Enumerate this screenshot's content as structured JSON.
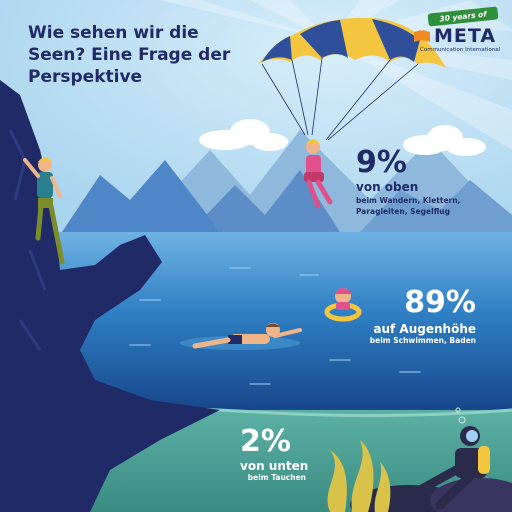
{
  "title": "Wie sehen wir die Seen? Eine Frage der Perspektive",
  "logo": {
    "badge": "30 years of",
    "name": "META",
    "tagline": "Communication International",
    "icon": "book-icon"
  },
  "stats": {
    "top": {
      "value": "9%",
      "label": "von oben",
      "detail": "beim Wandern, Klettern, Paragleiten, Segelflug"
    },
    "middle": {
      "value": "89%",
      "label": "auf Augenhöhe",
      "detail": "beim Schwimmen, Baden"
    },
    "bottom": {
      "value": "2%",
      "label": "von unten",
      "detail": "beim Tauchen"
    }
  },
  "colors": {
    "sky": "#a9d4ee",
    "lake": "#2f7fc4",
    "deep_lake": "#1b4f8f",
    "underwater": "#55a89a",
    "rock": "#1f2a66",
    "navy_text": "#1f2a66",
    "parachute_yellow": "#f4c640",
    "parachute_blue": "#2f4f9a",
    "logo_green": "#2f8f3a",
    "logo_orange": "#f08c21"
  },
  "illustrations": [
    "climber",
    "paraglider",
    "swimmer",
    "child-with-float-ring",
    "diver",
    "seaweed",
    "mountains",
    "clouds"
  ]
}
